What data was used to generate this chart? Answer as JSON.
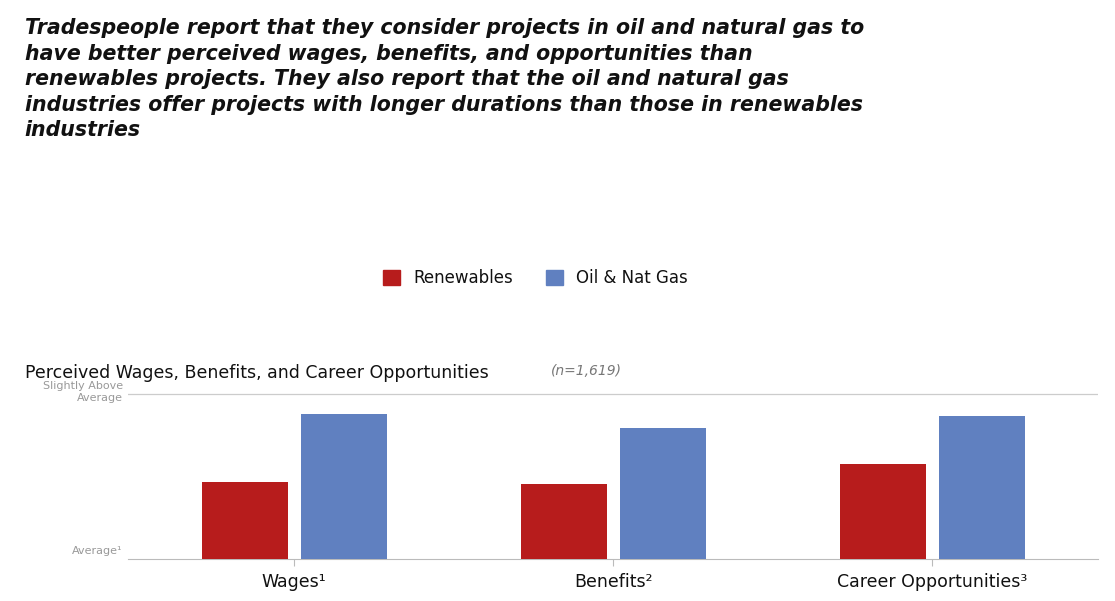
{
  "title_line1": "Tradespeople report that they consider projects in oil and natural gas to",
  "title_line2": "have better perceived wages, benefits, and opportunities than",
  "title_line3": "renewables projects. They also report that the oil and natural gas",
  "title_line4": "industries offer projects with longer durations than those in renewables",
  "title_line5": "industries",
  "subtitle": "Perceived Wages, Benefits, and Career Opportunities",
  "subtitle_n": "(n=1,619)",
  "categories": [
    "Wages¹",
    "Benefits²",
    "Career Opportunities³"
  ],
  "renewables_values": [
    0.38,
    0.37,
    0.47
  ],
  "oil_gas_values": [
    0.72,
    0.65,
    0.71
  ],
  "ymin": 0.0,
  "ymax": 0.88,
  "y_line_slightly_above": 0.82,
  "renewables_color": "#b71c1c",
  "oil_gas_color": "#6080c0",
  "legend_renewables": "Renewables",
  "legend_oil_gas": "Oil & Nat Gas",
  "background_color": "#ffffff",
  "bar_width": 0.27,
  "xlim_left": -0.52,
  "xlim_right": 2.52
}
